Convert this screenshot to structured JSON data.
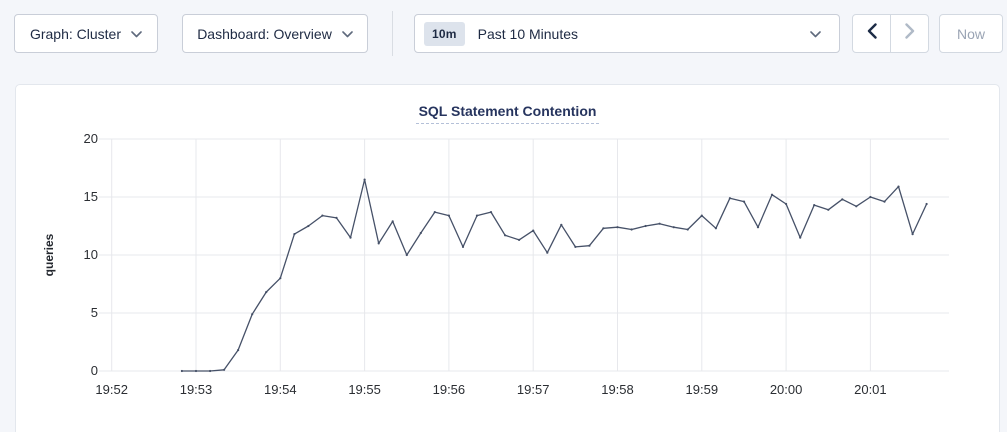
{
  "toolbar": {
    "graph_dropdown_label": "Graph: Cluster",
    "dashboard_dropdown_label": "Dashboard: Overview",
    "time_badge": "10m",
    "time_label": "Past 10 Minutes",
    "now_button_label": "Now"
  },
  "colors": {
    "accent_navy": "#1c2b46",
    "disabled_icon": "#b0bac7",
    "line": "#465168",
    "grid": "#e7e8ec",
    "title": "#26345e",
    "page_bg": "#f4f6fa"
  },
  "chart_data": {
    "type": "line",
    "title": "SQL Statement Contention",
    "ylabel": "queries",
    "xlabel": "",
    "ylim": [
      0,
      20
    ],
    "yticks": [
      0,
      5,
      10,
      15,
      20
    ],
    "xticks": [
      "19:52",
      "19:53",
      "19:54",
      "19:55",
      "19:56",
      "19:57",
      "19:58",
      "19:59",
      "20:00",
      "20:01"
    ],
    "grid": true,
    "legend_position": "none",
    "series": [
      {
        "name": "SQL Statement Contention",
        "unit": "queries",
        "points": [
          [
            "19:52:50",
            0
          ],
          [
            "19:53:00",
            0
          ],
          [
            "19:53:10",
            0
          ],
          [
            "19:53:20",
            0.1
          ],
          [
            "19:53:30",
            1.8
          ],
          [
            "19:53:40",
            4.9
          ],
          [
            "19:53:50",
            6.8
          ],
          [
            "19:54:00",
            8.0
          ],
          [
            "19:54:10",
            11.8
          ],
          [
            "19:54:20",
            12.5
          ],
          [
            "19:54:30",
            13.4
          ],
          [
            "19:54:40",
            13.2
          ],
          [
            "19:54:50",
            11.5
          ],
          [
            "19:55:00",
            16.5
          ],
          [
            "19:55:10",
            11.0
          ],
          [
            "19:55:20",
            12.9
          ],
          [
            "19:55:30",
            10.0
          ],
          [
            "19:55:40",
            11.9
          ],
          [
            "19:55:50",
            13.7
          ],
          [
            "19:56:00",
            13.4
          ],
          [
            "19:56:10",
            10.7
          ],
          [
            "19:56:20",
            13.4
          ],
          [
            "19:56:30",
            13.7
          ],
          [
            "19:56:40",
            11.7
          ],
          [
            "19:56:50",
            11.3
          ],
          [
            "19:57:00",
            12.1
          ],
          [
            "19:57:10",
            10.2
          ],
          [
            "19:57:20",
            12.6
          ],
          [
            "19:57:30",
            10.7
          ],
          [
            "19:57:40",
            10.8
          ],
          [
            "19:57:50",
            12.3
          ],
          [
            "19:58:00",
            12.4
          ],
          [
            "19:58:10",
            12.2
          ],
          [
            "19:58:20",
            12.5
          ],
          [
            "19:58:30",
            12.7
          ],
          [
            "19:58:40",
            12.4
          ],
          [
            "19:58:50",
            12.2
          ],
          [
            "19:59:00",
            13.4
          ],
          [
            "19:59:10",
            12.3
          ],
          [
            "19:59:20",
            14.9
          ],
          [
            "19:59:30",
            14.6
          ],
          [
            "19:59:40",
            12.4
          ],
          [
            "19:59:50",
            15.2
          ],
          [
            "20:00:00",
            14.4
          ],
          [
            "20:00:10",
            11.5
          ],
          [
            "20:00:20",
            14.3
          ],
          [
            "20:00:30",
            13.9
          ],
          [
            "20:00:40",
            14.8
          ],
          [
            "20:00:50",
            14.2
          ],
          [
            "20:01:00",
            15.0
          ],
          [
            "20:01:10",
            14.6
          ],
          [
            "20:01:20",
            15.9
          ],
          [
            "20:01:30",
            11.8
          ],
          [
            "20:01:40",
            14.4
          ]
        ]
      }
    ]
  }
}
